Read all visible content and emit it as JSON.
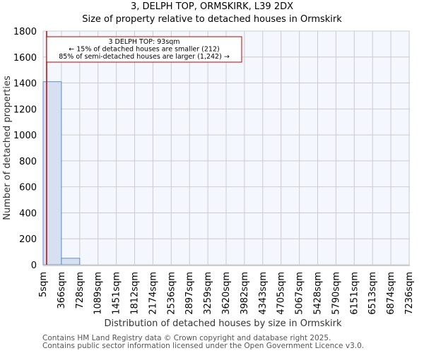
{
  "header": {
    "title": "3, DELPH TOP, ORMSKIRK, L39 2DX",
    "subtitle": "Size of property relative to detached houses in Ormskirk"
  },
  "annotation": {
    "line1": "3 DELPH TOP: 93sqm",
    "line2": "← 15% of detached houses are smaller (212)",
    "line3": "85% of semi-detached houses are larger (1,242) →"
  },
  "footer": {
    "line1": "Contains HM Land Registry data © Crown copyright and database right 2025.",
    "line2": "Contains public sector information licensed under the Open Government Licence v3.0."
  },
  "colors": {
    "bar_fill": "#d6e0f0",
    "bar_edge": "#5b8ccf",
    "plot_bg": "#f4f7fd",
    "grid": "#cccccc",
    "marker": "#c00000"
  },
  "chart_data": {
    "type": "bar",
    "title": "3, DELPH TOP, ORMSKIRK, L39 2DX",
    "subtitle": "Size of property relative to detached houses in Ormskirk",
    "xlabel": "Distribution of detached houses by size in Ormskirk",
    "ylabel": "Number of detached properties",
    "categories": [
      "5sqm",
      "366sqm",
      "728sqm",
      "1089sqm",
      "1451sqm",
      "1812sqm",
      "2174sqm",
      "2536sqm",
      "2897sqm",
      "3259sqm",
      "3620sqm",
      "3982sqm",
      "4343sqm",
      "4705sqm",
      "5067sqm",
      "5428sqm",
      "5790sqm",
      "6151sqm",
      "6513sqm",
      "6874sqm",
      "7236sqm"
    ],
    "values": [
      1410,
      50,
      0,
      0,
      0,
      0,
      0,
      0,
      0,
      0,
      0,
      0,
      0,
      0,
      0,
      0,
      0,
      0,
      0,
      0
    ],
    "yticks": [
      0,
      200,
      400,
      600,
      800,
      1000,
      1200,
      1400,
      1600,
      1800
    ],
    "ylim": [
      0,
      1800
    ],
    "grid": true,
    "marker": {
      "value_sqm": 93,
      "label": "3 DELPH TOP: 93sqm"
    }
  }
}
